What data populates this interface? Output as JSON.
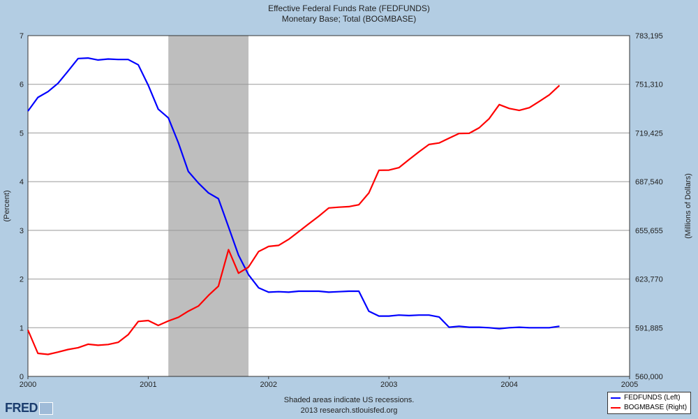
{
  "header": {
    "title_line1": "Effective Federal Funds Rate (FEDFUNDS)",
    "title_line2": "Monetary Base; Total (BOGMBASE)"
  },
  "footer": {
    "line1": "Shaded areas indicate US recessions.",
    "line2": "2013 research.stlouisfed.org"
  },
  "logo": {
    "text": "FRED",
    "icon": "fred-chart-icon"
  },
  "colors": {
    "background": "#b3cde3",
    "plot_bg": "#ffffff",
    "grid": "#999999",
    "recession": "#bebebe",
    "fedfunds": "#0000ff",
    "bogmbase": "#ff0000"
  },
  "chart_data": {
    "type": "line",
    "x_range": [
      2000,
      2005
    ],
    "x_ticks": [
      "2000",
      "2001",
      "2002",
      "2003",
      "2004",
      "2005"
    ],
    "left_axis": {
      "label": "(Percent)",
      "range": [
        0,
        7
      ],
      "ticks": [
        "0",
        "1",
        "2",
        "3",
        "4",
        "5",
        "6",
        "7"
      ]
    },
    "right_axis": {
      "label": "(Millions of Dollars)",
      "range": [
        560000,
        783195
      ],
      "ticks": [
        "560,000",
        "591,885",
        "623,770",
        "655,655",
        "687,540",
        "719,425",
        "751,310",
        "783,195"
      ]
    },
    "grid": true,
    "recessions": [
      [
        2001.167,
        2001.833
      ]
    ],
    "legend": {
      "position": "bottom-right",
      "entries": [
        "FEDFUNDS (Left)",
        "BOGMBASE (Right)"
      ]
    },
    "series": [
      {
        "name": "FEDFUNDS (Left)",
        "axis": "left",
        "x": [
          2000.0,
          2000.083,
          2000.167,
          2000.25,
          2000.333,
          2000.417,
          2000.5,
          2000.583,
          2000.667,
          2000.75,
          2000.833,
          2000.917,
          2001.0,
          2001.083,
          2001.167,
          2001.25,
          2001.333,
          2001.417,
          2001.5,
          2001.583,
          2001.667,
          2001.75,
          2001.833,
          2001.917,
          2002.0,
          2002.083,
          2002.167,
          2002.25,
          2002.333,
          2002.417,
          2002.5,
          2002.583,
          2002.667,
          2002.75,
          2002.833,
          2002.917,
          2003.0,
          2003.083,
          2003.167,
          2003.25,
          2003.333,
          2003.417,
          2003.5,
          2003.583,
          2003.667,
          2003.75,
          2003.833,
          2003.917,
          2004.0,
          2004.083,
          2004.167,
          2004.25,
          2004.333,
          2004.417
        ],
        "values": [
          5.45,
          5.73,
          5.85,
          6.02,
          6.27,
          6.53,
          6.54,
          6.5,
          6.52,
          6.51,
          6.51,
          6.4,
          5.98,
          5.49,
          5.31,
          4.8,
          4.21,
          3.97,
          3.77,
          3.65,
          3.07,
          2.49,
          2.09,
          1.82,
          1.73,
          1.74,
          1.73,
          1.75,
          1.75,
          1.75,
          1.73,
          1.74,
          1.75,
          1.75,
          1.34,
          1.24,
          1.24,
          1.26,
          1.25,
          1.26,
          1.26,
          1.22,
          1.01,
          1.03,
          1.01,
          1.01,
          1.0,
          0.98,
          1.0,
          1.01,
          1.0,
          1.0,
          1.0,
          1.03
        ]
      },
      {
        "name": "BOGMBASE (Right)",
        "axis": "right",
        "x": [
          2000.0,
          2000.083,
          2000.167,
          2000.25,
          2000.333,
          2000.417,
          2000.5,
          2000.583,
          2000.667,
          2000.75,
          2000.833,
          2000.917,
          2001.0,
          2001.083,
          2001.167,
          2001.25,
          2001.333,
          2001.417,
          2001.5,
          2001.583,
          2001.667,
          2001.75,
          2001.833,
          2001.917,
          2002.0,
          2002.083,
          2002.167,
          2002.25,
          2002.333,
          2002.417,
          2002.5,
          2002.583,
          2002.667,
          2002.75,
          2002.833,
          2002.917,
          2003.0,
          2003.083,
          2003.167,
          2003.25,
          2003.333,
          2003.417,
          2003.5,
          2003.583,
          2003.667,
          2003.75,
          2003.833,
          2003.917,
          2004.0,
          2004.083,
          2004.167,
          2004.25,
          2004.333,
          2004.417
        ],
        "values": [
          590400,
          575100,
          574400,
          575900,
          577600,
          578800,
          581100,
          580400,
          580900,
          582300,
          587300,
          596000,
          596600,
          593400,
          596300,
          598700,
          602700,
          606100,
          613000,
          619100,
          643000,
          627600,
          631600,
          641800,
          645100,
          645800,
          649800,
          654800,
          659900,
          664900,
          670300,
          670800,
          671200,
          672400,
          680100,
          695000,
          695100,
          696700,
          702000,
          707100,
          711900,
          712900,
          716000,
          719100,
          719200,
          722800,
          728800,
          738000,
          735500,
          734200,
          736000,
          740100,
          744400,
          750600
        ]
      }
    ]
  }
}
